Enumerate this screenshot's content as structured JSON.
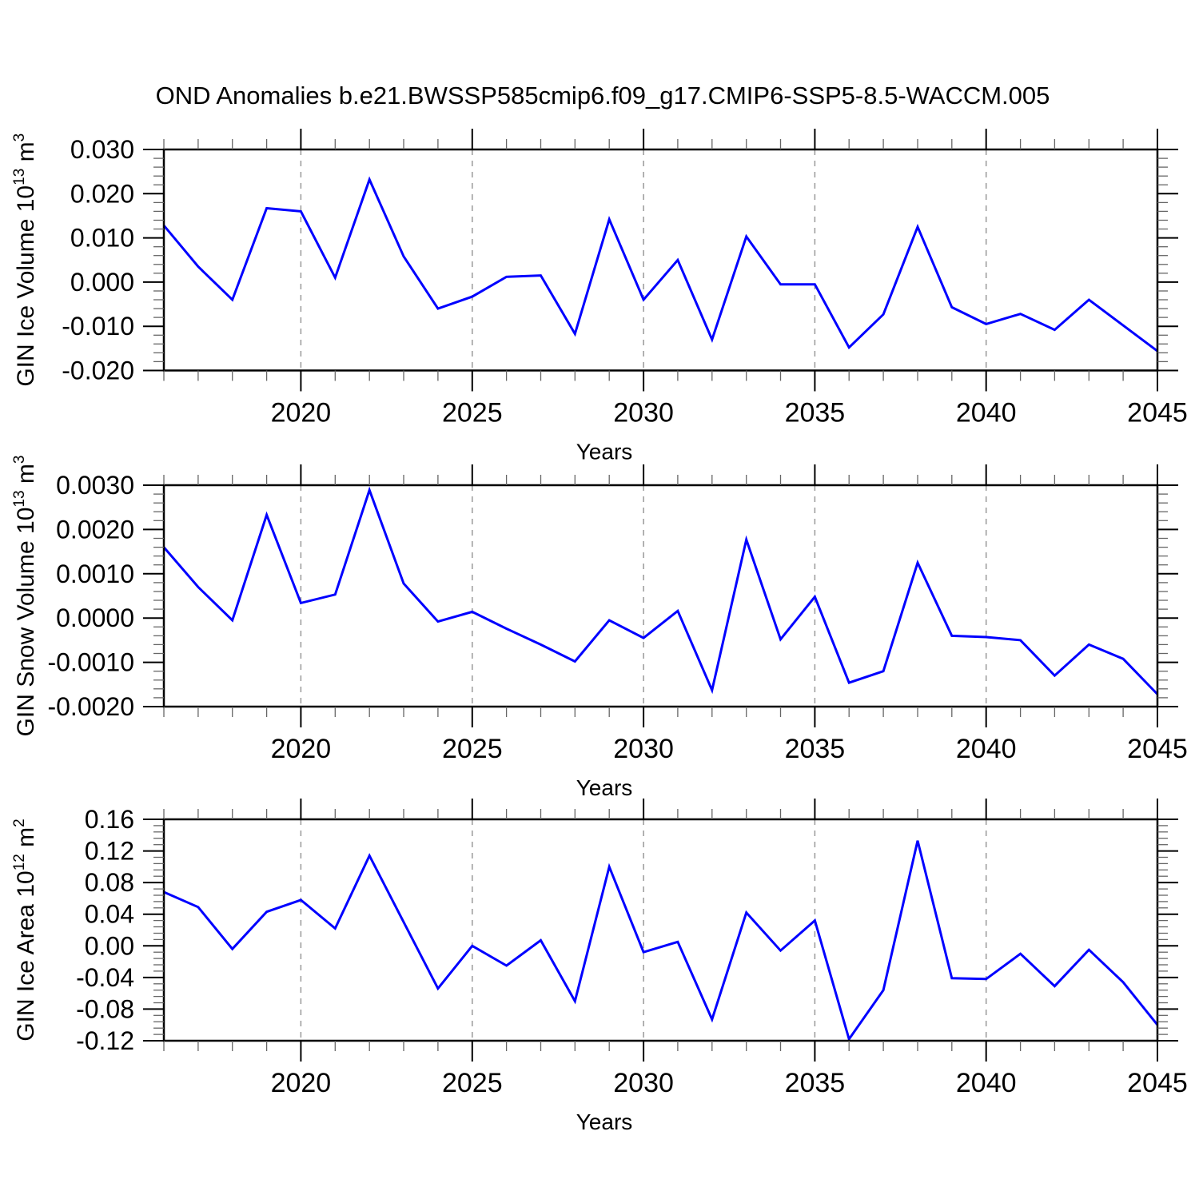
{
  "title": "OND Anomalies b.e21.BWSSP585cmip6.f09_g17.CMIP6-SSP5-8.5-WACCM.005",
  "x_axis_label": "Years",
  "line_color": "#0000ff",
  "grid_color": "#999999",
  "axis_color": "#000000",
  "minor_tick_color": "#666666",
  "chart_data": [
    {
      "type": "line",
      "name": "GIN Ice Volume",
      "ylabel_parts": [
        {
          "text": "GIN Ice Volume 10",
          "sup": false
        },
        {
          "text": "13",
          "sup": true
        },
        {
          "text": " m",
          "sup": false
        },
        {
          "text": "3",
          "sup": true
        }
      ],
      "x": [
        2016,
        2017,
        2018,
        2019,
        2020,
        2021,
        2022,
        2023,
        2024,
        2025,
        2026,
        2027,
        2028,
        2029,
        2030,
        2031,
        2032,
        2033,
        2034,
        2035,
        2036,
        2037,
        2038,
        2039,
        2040,
        2041,
        2042,
        2043,
        2044,
        2045
      ],
      "values": [
        0.0128,
        0.0035,
        -0.004,
        0.0167,
        0.016,
        0.001,
        0.0232,
        0.0058,
        -0.006,
        -0.0033,
        0.0012,
        0.0015,
        -0.0117,
        0.0142,
        -0.004,
        0.005,
        -0.013,
        0.0103,
        -0.0005,
        -0.0005,
        -0.0148,
        -0.0073,
        0.0125,
        -0.0057,
        -0.0095,
        -0.0072,
        -0.0108,
        -0.004,
        -0.0098,
        -0.0156
      ],
      "xlim": [
        2016,
        2045
      ],
      "ylim": [
        -0.02,
        0.03
      ],
      "yticks": [
        0.03,
        0.02,
        0.01,
        0.0,
        -0.01,
        -0.02
      ],
      "ytick_labels": [
        "0.030",
        "0.020",
        "0.010",
        "0.000",
        "-0.010",
        "-0.020"
      ],
      "y_minor_step": 0.002,
      "xticks": [
        2020,
        2025,
        2030,
        2035,
        2040,
        2045
      ],
      "xtick_labels": [
        "2020",
        "2025",
        "2030",
        "2035",
        "2040",
        "2045"
      ],
      "x_minor_step": 1,
      "grid_x_dashed": [
        2020,
        2025,
        2030,
        2035,
        2040
      ],
      "grid_on": true,
      "legend": "none"
    },
    {
      "type": "line",
      "name": "GIN Snow Volume",
      "ylabel_parts": [
        {
          "text": "GIN Snow Volume 10",
          "sup": false
        },
        {
          "text": "13",
          "sup": true
        },
        {
          "text": " m",
          "sup": false
        },
        {
          "text": "3",
          "sup": true
        }
      ],
      "x": [
        2016,
        2017,
        2018,
        2019,
        2020,
        2021,
        2022,
        2023,
        2024,
        2025,
        2026,
        2027,
        2028,
        2029,
        2030,
        2031,
        2032,
        2033,
        2034,
        2035,
        2036,
        2037,
        2038,
        2039,
        2040,
        2041,
        2042,
        2043,
        2044,
        2045
      ],
      "values": [
        0.0016,
        0.0007,
        -5e-05,
        0.00233,
        0.00034,
        0.00053,
        0.00289,
        0.00078,
        -8e-05,
        0.00014,
        -0.00024,
        -0.0006,
        -0.00098,
        -5e-05,
        -0.00045,
        0.00016,
        -0.00163,
        0.00177,
        -0.00048,
        0.00048,
        -0.00146,
        -0.0012,
        0.00125,
        -0.0004,
        -0.00043,
        -0.0005,
        -0.0013,
        -0.0006,
        -0.00092,
        -0.00172
      ],
      "xlim": [
        2016,
        2045
      ],
      "ylim": [
        -0.002,
        0.003
      ],
      "yticks": [
        0.003,
        0.002,
        0.001,
        0.0,
        -0.001,
        -0.002
      ],
      "ytick_labels": [
        "0.0030",
        "0.0020",
        "0.0010",
        "0.0000",
        "-0.0010",
        "-0.0020"
      ],
      "y_minor_step": 0.0002,
      "xticks": [
        2020,
        2025,
        2030,
        2035,
        2040,
        2045
      ],
      "xtick_labels": [
        "2020",
        "2025",
        "2030",
        "2035",
        "2040",
        "2045"
      ],
      "x_minor_step": 1,
      "grid_x_dashed": [
        2020,
        2025,
        2030,
        2035,
        2040
      ],
      "grid_on": true,
      "legend": "none"
    },
    {
      "type": "line",
      "name": "GIN Ice Area",
      "ylabel_parts": [
        {
          "text": "GIN Ice Area 10",
          "sup": false
        },
        {
          "text": "12",
          "sup": true
        },
        {
          "text": " m",
          "sup": false
        },
        {
          "text": "2",
          "sup": true
        }
      ],
      "x": [
        2016,
        2017,
        2018,
        2019,
        2020,
        2021,
        2022,
        2023,
        2024,
        2025,
        2026,
        2027,
        2028,
        2029,
        2030,
        2031,
        2032,
        2033,
        2034,
        2035,
        2036,
        2037,
        2038,
        2039,
        2040,
        2041,
        2042,
        2043,
        2044,
        2045
      ],
      "values": [
        0.068,
        0.049,
        -0.004,
        0.043,
        0.058,
        0.022,
        0.114,
        0.03,
        -0.054,
        0.0,
        -0.025,
        0.007,
        -0.07,
        0.1,
        -0.008,
        0.005,
        -0.093,
        0.042,
        -0.006,
        0.032,
        -0.118,
        -0.056,
        0.133,
        -0.041,
        -0.042,
        -0.01,
        -0.051,
        -0.005,
        -0.046,
        -0.1
      ],
      "xlim": [
        2016,
        2045
      ],
      "ylim": [
        -0.12,
        0.16
      ],
      "yticks": [
        0.16,
        0.12,
        0.08,
        0.04,
        0.0,
        -0.04,
        -0.08,
        -0.12
      ],
      "ytick_labels": [
        "0.16",
        "0.12",
        "0.08",
        "0.04",
        "0.00",
        "-0.04",
        "-0.08",
        "-0.12"
      ],
      "y_minor_step": 0.008,
      "xticks": [
        2020,
        2025,
        2030,
        2035,
        2040,
        2045
      ],
      "xtick_labels": [
        "2020",
        "2025",
        "2030",
        "2035",
        "2040",
        "2045"
      ],
      "x_minor_step": 1,
      "grid_x_dashed": [
        2020,
        2025,
        2030,
        2035,
        2040
      ],
      "grid_on": true,
      "legend": "none"
    }
  ]
}
